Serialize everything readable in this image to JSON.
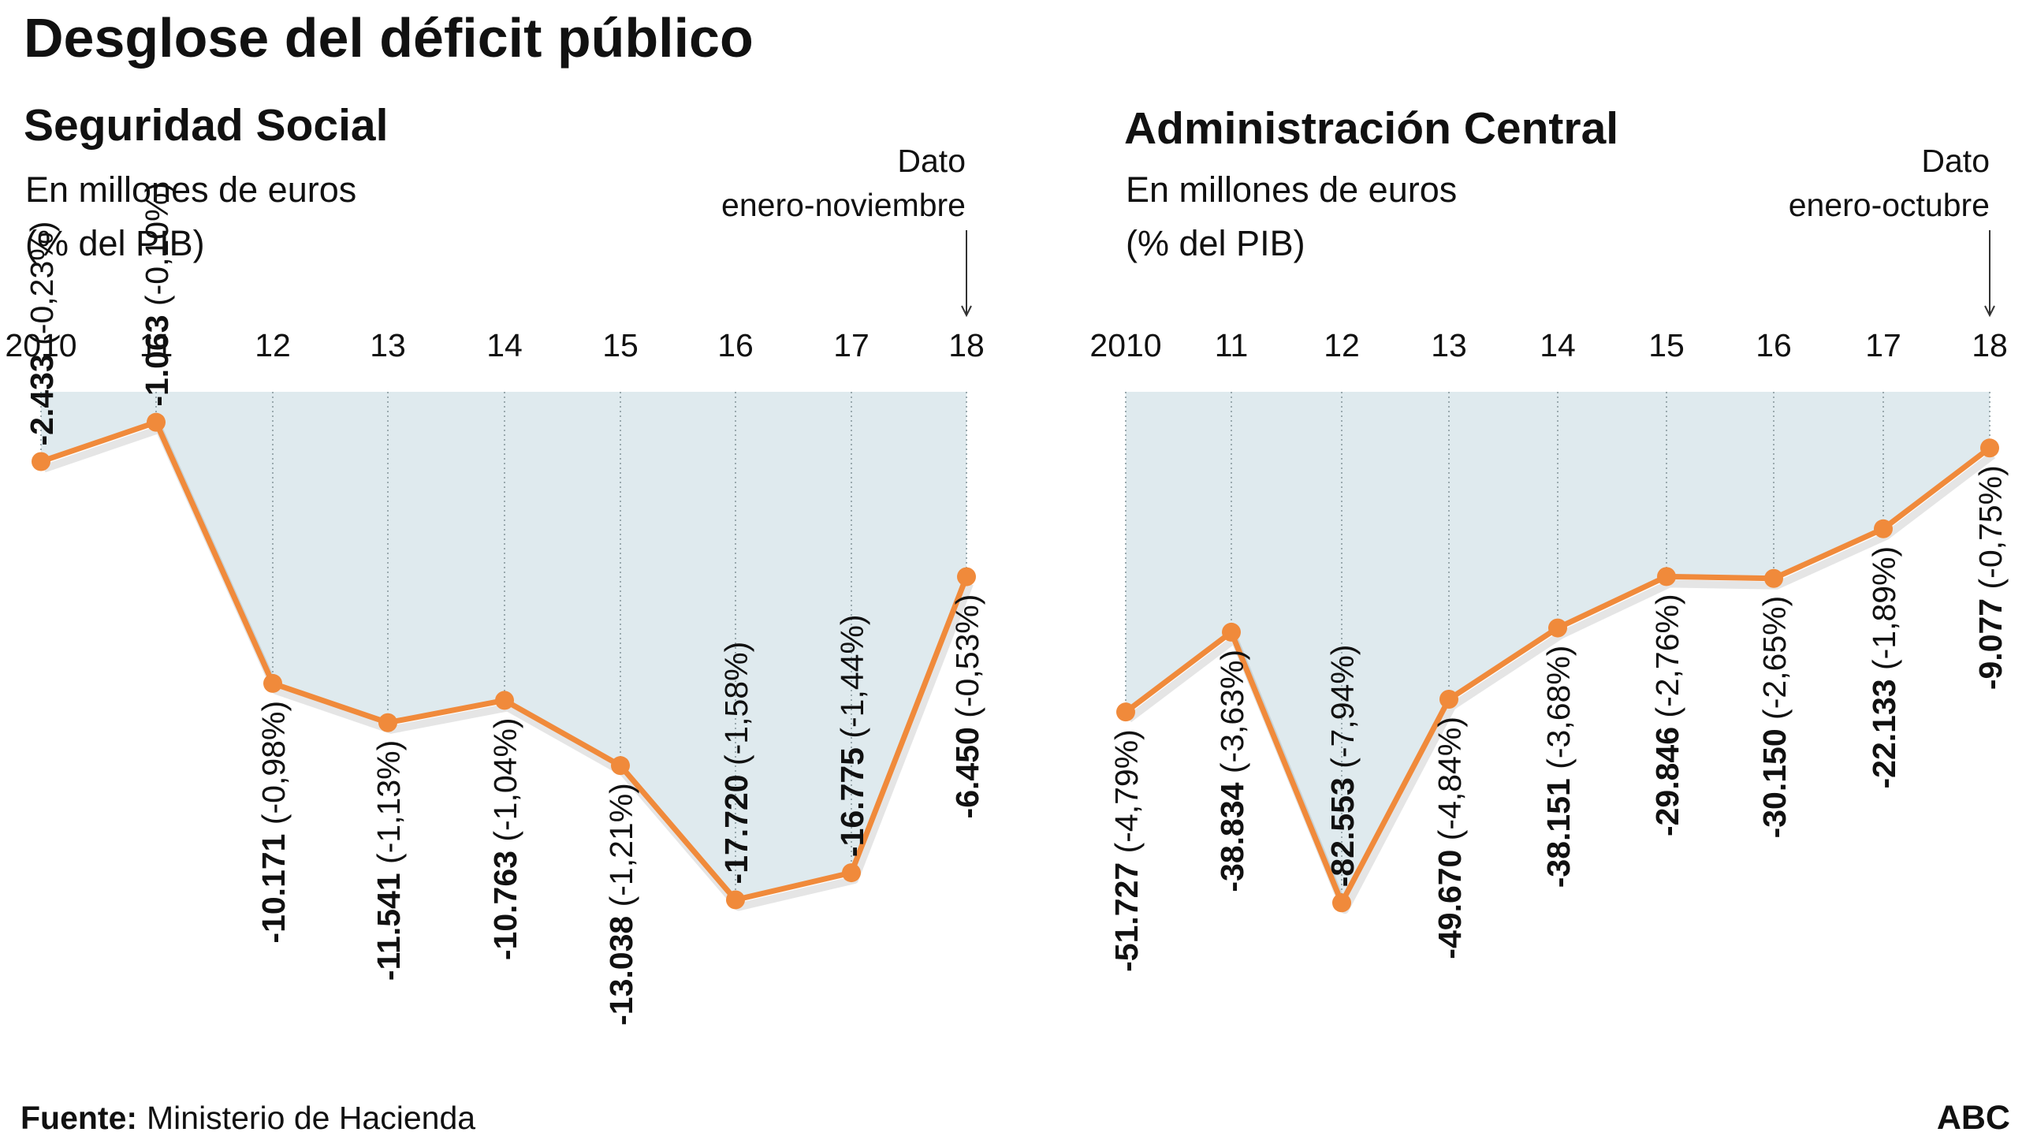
{
  "title": "Desglose del déficit público",
  "source_label": "Fuente:",
  "source_text": "Ministerio de Hacienda",
  "brand": "ABC",
  "colors": {
    "line": "#f08a3b",
    "area": "#dfeaee",
    "grid": "#9aa9ae",
    "text": "#111111"
  },
  "chart_data": [
    {
      "type": "area",
      "title": "Seguridad Social",
      "subtitle": "En millones de euros",
      "subtitle2": "(% del PIB)",
      "annotation": [
        "Dato",
        "enero-noviembre"
      ],
      "x": [
        "2010",
        "11",
        "12",
        "13",
        "14",
        "15",
        "16",
        "17",
        "18"
      ],
      "values": [
        -2433,
        -1063,
        -10171,
        -11541,
        -10763,
        -13038,
        -17720,
        -16775,
        -6450
      ],
      "value_labels": [
        "-2.433",
        "-1.063",
        "-10.171",
        "-11.541",
        "-10.763",
        "-13.038",
        "-17.720",
        "-16.775",
        "-6.450"
      ],
      "pct_labels": [
        "(-0,23%)",
        "(-0,10%)",
        "(-0,98%)",
        "(-1,13%)",
        "(-1,04%)",
        "(-1,21%)",
        "(-1,58%)",
        "(-1,44%)",
        "(-0,53%)"
      ],
      "ylim": [
        -19000,
        0
      ]
    },
    {
      "type": "area",
      "title": "Administración Central",
      "subtitle": "En millones de euros",
      "subtitle2": "(% del PIB)",
      "annotation": [
        "Dato",
        "enero-octubre"
      ],
      "x": [
        "2010",
        "11",
        "12",
        "13",
        "14",
        "15",
        "16",
        "17",
        "18"
      ],
      "values": [
        -51727,
        -38834,
        -82553,
        -49670,
        -38151,
        -29846,
        -30150,
        -22133,
        -9077
      ],
      "value_labels": [
        "-51.727",
        "-38.834",
        "-82.553",
        "-49.670",
        "-38.151",
        "-29.846",
        "-30.150",
        "-22.133",
        "-9.077"
      ],
      "pct_labels": [
        "(-4,79%)",
        "(-3,63%)",
        "(-7,94%)",
        "(-4,84%)",
        "(-3,68%)",
        "(-2,76%)",
        "(-2,65%)",
        "(-1,89%)",
        "(-0,75%)"
      ],
      "ylim": [
        -88000,
        0
      ]
    }
  ]
}
